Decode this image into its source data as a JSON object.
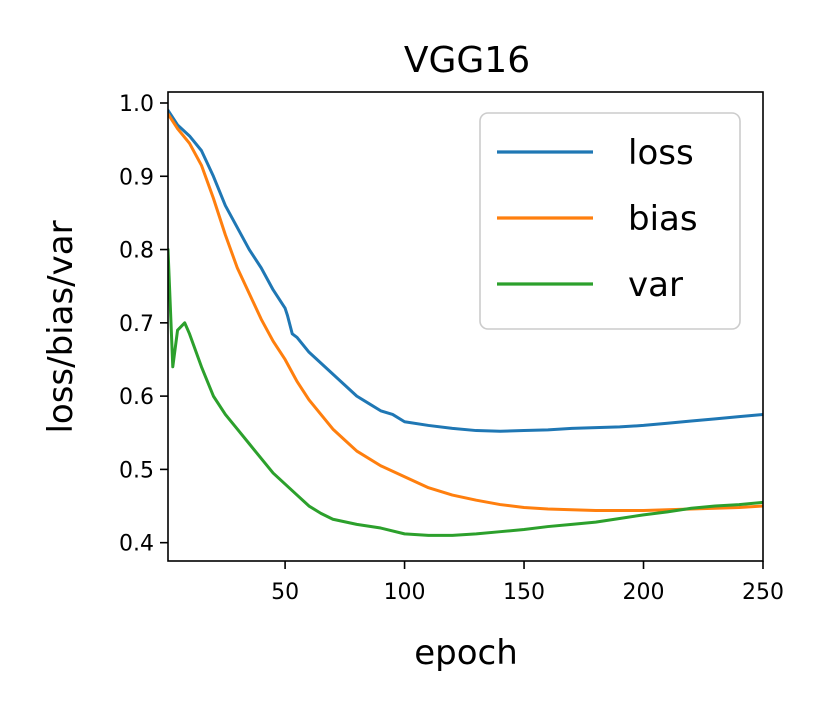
{
  "chart_data": {
    "type": "line",
    "title": "VGG16",
    "xlabel": "epoch",
    "ylabel": "loss/bias/var",
    "xlim": [
      1,
      250
    ],
    "ylim": [
      0.375,
      1.015
    ],
    "xticks": [
      50,
      100,
      150,
      200,
      250
    ],
    "yticks": [
      0.4,
      0.5,
      0.6,
      0.7,
      0.8,
      0.9,
      1.0
    ],
    "xtick_labels": [
      "50",
      "100",
      "150",
      "200",
      "250"
    ],
    "ytick_labels": [
      "0.4",
      "0.5",
      "0.6",
      "0.7",
      "0.8",
      "0.9",
      "1.0"
    ],
    "legend_position": "top-right",
    "series": [
      {
        "name": "loss",
        "color": "#1f77b4",
        "points": [
          [
            1,
            0.99
          ],
          [
            5,
            0.97
          ],
          [
            10,
            0.955
          ],
          [
            15,
            0.935
          ],
          [
            20,
            0.9
          ],
          [
            25,
            0.86
          ],
          [
            30,
            0.83
          ],
          [
            35,
            0.8
          ],
          [
            40,
            0.775
          ],
          [
            45,
            0.745
          ],
          [
            50,
            0.72
          ],
          [
            51,
            0.71
          ],
          [
            53,
            0.685
          ],
          [
            55,
            0.68
          ],
          [
            60,
            0.66
          ],
          [
            65,
            0.645
          ],
          [
            70,
            0.63
          ],
          [
            75,
            0.615
          ],
          [
            80,
            0.6
          ],
          [
            85,
            0.59
          ],
          [
            90,
            0.58
          ],
          [
            95,
            0.575
          ],
          [
            100,
            0.565
          ],
          [
            110,
            0.56
          ],
          [
            120,
            0.556
          ],
          [
            130,
            0.553
          ],
          [
            140,
            0.552
          ],
          [
            150,
            0.553
          ],
          [
            160,
            0.554
          ],
          [
            170,
            0.556
          ],
          [
            180,
            0.557
          ],
          [
            190,
            0.558
          ],
          [
            200,
            0.56
          ],
          [
            210,
            0.563
          ],
          [
            220,
            0.566
          ],
          [
            230,
            0.569
          ],
          [
            240,
            0.572
          ],
          [
            250,
            0.575
          ]
        ]
      },
      {
        "name": "bias",
        "color": "#ff7f0e",
        "points": [
          [
            1,
            0.985
          ],
          [
            5,
            0.965
          ],
          [
            10,
            0.945
          ],
          [
            15,
            0.915
          ],
          [
            20,
            0.87
          ],
          [
            25,
            0.82
          ],
          [
            30,
            0.775
          ],
          [
            35,
            0.74
          ],
          [
            40,
            0.705
          ],
          [
            45,
            0.675
          ],
          [
            50,
            0.65
          ],
          [
            55,
            0.62
          ],
          [
            60,
            0.595
          ],
          [
            65,
            0.575
          ],
          [
            70,
            0.555
          ],
          [
            75,
            0.54
          ],
          [
            80,
            0.525
          ],
          [
            90,
            0.505
          ],
          [
            100,
            0.49
          ],
          [
            110,
            0.475
          ],
          [
            120,
            0.465
          ],
          [
            130,
            0.458
          ],
          [
            140,
            0.452
          ],
          [
            150,
            0.448
          ],
          [
            160,
            0.446
          ],
          [
            170,
            0.445
          ],
          [
            180,
            0.444
          ],
          [
            190,
            0.444
          ],
          [
            200,
            0.444
          ],
          [
            210,
            0.445
          ],
          [
            220,
            0.446
          ],
          [
            230,
            0.447
          ],
          [
            240,
            0.448
          ],
          [
            250,
            0.45
          ]
        ]
      },
      {
        "name": "var",
        "color": "#2ca02c",
        "points": [
          [
            1,
            0.8
          ],
          [
            3,
            0.64
          ],
          [
            5,
            0.69
          ],
          [
            8,
            0.7
          ],
          [
            10,
            0.685
          ],
          [
            15,
            0.64
          ],
          [
            20,
            0.6
          ],
          [
            25,
            0.575
          ],
          [
            30,
            0.555
          ],
          [
            35,
            0.535
          ],
          [
            40,
            0.515
          ],
          [
            45,
            0.495
          ],
          [
            50,
            0.48
          ],
          [
            55,
            0.465
          ],
          [
            60,
            0.45
          ],
          [
            65,
            0.44
          ],
          [
            70,
            0.432
          ],
          [
            80,
            0.425
          ],
          [
            90,
            0.42
          ],
          [
            100,
            0.412
          ],
          [
            110,
            0.41
          ],
          [
            120,
            0.41
          ],
          [
            130,
            0.412
          ],
          [
            140,
            0.415
          ],
          [
            150,
            0.418
          ],
          [
            160,
            0.422
          ],
          [
            170,
            0.425
          ],
          [
            180,
            0.428
          ],
          [
            190,
            0.433
          ],
          [
            200,
            0.438
          ],
          [
            210,
            0.442
          ],
          [
            220,
            0.447
          ],
          [
            230,
            0.45
          ],
          [
            240,
            0.452
          ],
          [
            250,
            0.455
          ]
        ]
      }
    ]
  }
}
